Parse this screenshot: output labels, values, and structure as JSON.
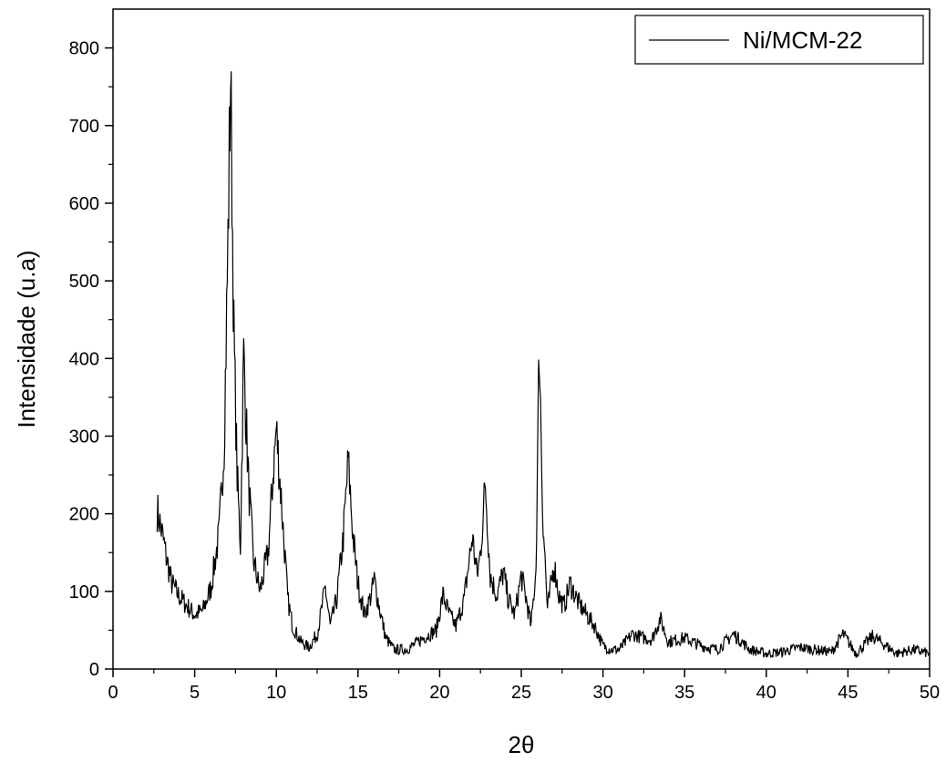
{
  "chart_data": {
    "type": "line",
    "title": "",
    "xlabel": "2θ",
    "ylabel": "Intensidade (u.a)",
    "xlim": [
      0,
      50
    ],
    "ylim": [
      0,
      850
    ],
    "x_ticks": [
      0,
      5,
      10,
      15,
      20,
      25,
      30,
      35,
      40,
      45,
      50
    ],
    "y_ticks": [
      0,
      100,
      200,
      300,
      400,
      500,
      600,
      700,
      800
    ],
    "grid": false,
    "legend_position": "top-right",
    "series": [
      {
        "name": "Ni/MCM-22",
        "color": "#000000",
        "x": [
          2.7,
          3.0,
          3.3,
          3.6,
          4.0,
          4.5,
          5.0,
          5.5,
          6.0,
          6.5,
          6.8,
          7.0,
          7.2,
          7.4,
          7.6,
          7.8,
          8.0,
          8.3,
          8.6,
          9.0,
          9.5,
          9.8,
          10.0,
          10.3,
          10.7,
          11.0,
          11.5,
          12.0,
          12.5,
          12.8,
          13.0,
          13.3,
          13.7,
          14.1,
          14.4,
          14.7,
          15.0,
          15.4,
          15.8,
          16.0,
          16.3,
          16.7,
          17.2,
          18.0,
          19.0,
          19.8,
          20.2,
          20.6,
          21.0,
          21.5,
          22.0,
          22.3,
          22.5,
          22.8,
          23.1,
          23.5,
          23.9,
          24.2,
          24.6,
          25.0,
          25.3,
          25.6,
          25.9,
          26.1,
          26.3,
          26.6,
          27.0,
          27.3,
          27.6,
          28.0,
          28.5,
          29.0,
          29.5,
          30.0,
          30.5,
          31.0,
          31.8,
          32.5,
          33.0,
          33.5,
          34.0,
          35.0,
          36.0,
          37.0,
          38.0,
          39.0,
          40.0,
          41.0,
          42.0,
          43.0,
          44.0,
          44.7,
          45.5,
          46.5,
          47.0,
          48.0,
          49.0,
          50.0
        ],
        "y": [
          205,
          175,
          140,
          110,
          95,
          82,
          70,
          75,
          105,
          175,
          290,
          500,
          768,
          430,
          250,
          160,
          405,
          240,
          140,
          100,
          150,
          250,
          310,
          220,
          90,
          55,
          35,
          28,
          45,
          80,
          105,
          55,
          90,
          170,
          268,
          170,
          110,
          70,
          95,
          115,
          80,
          40,
          25,
          25,
          40,
          50,
          95,
          70,
          55,
          90,
          170,
          120,
          150,
          240,
          120,
          95,
          125,
          90,
          70,
          120,
          90,
          55,
          130,
          425,
          210,
          75,
          135,
          95,
          80,
          110,
          85,
          70,
          55,
          30,
          25,
          25,
          45,
          40,
          38,
          65,
          35,
          40,
          30,
          25,
          45,
          25,
          20,
          22,
          28,
          25,
          22,
          45,
          20,
          42,
          35,
          20,
          25,
          20
        ]
      }
    ]
  }
}
